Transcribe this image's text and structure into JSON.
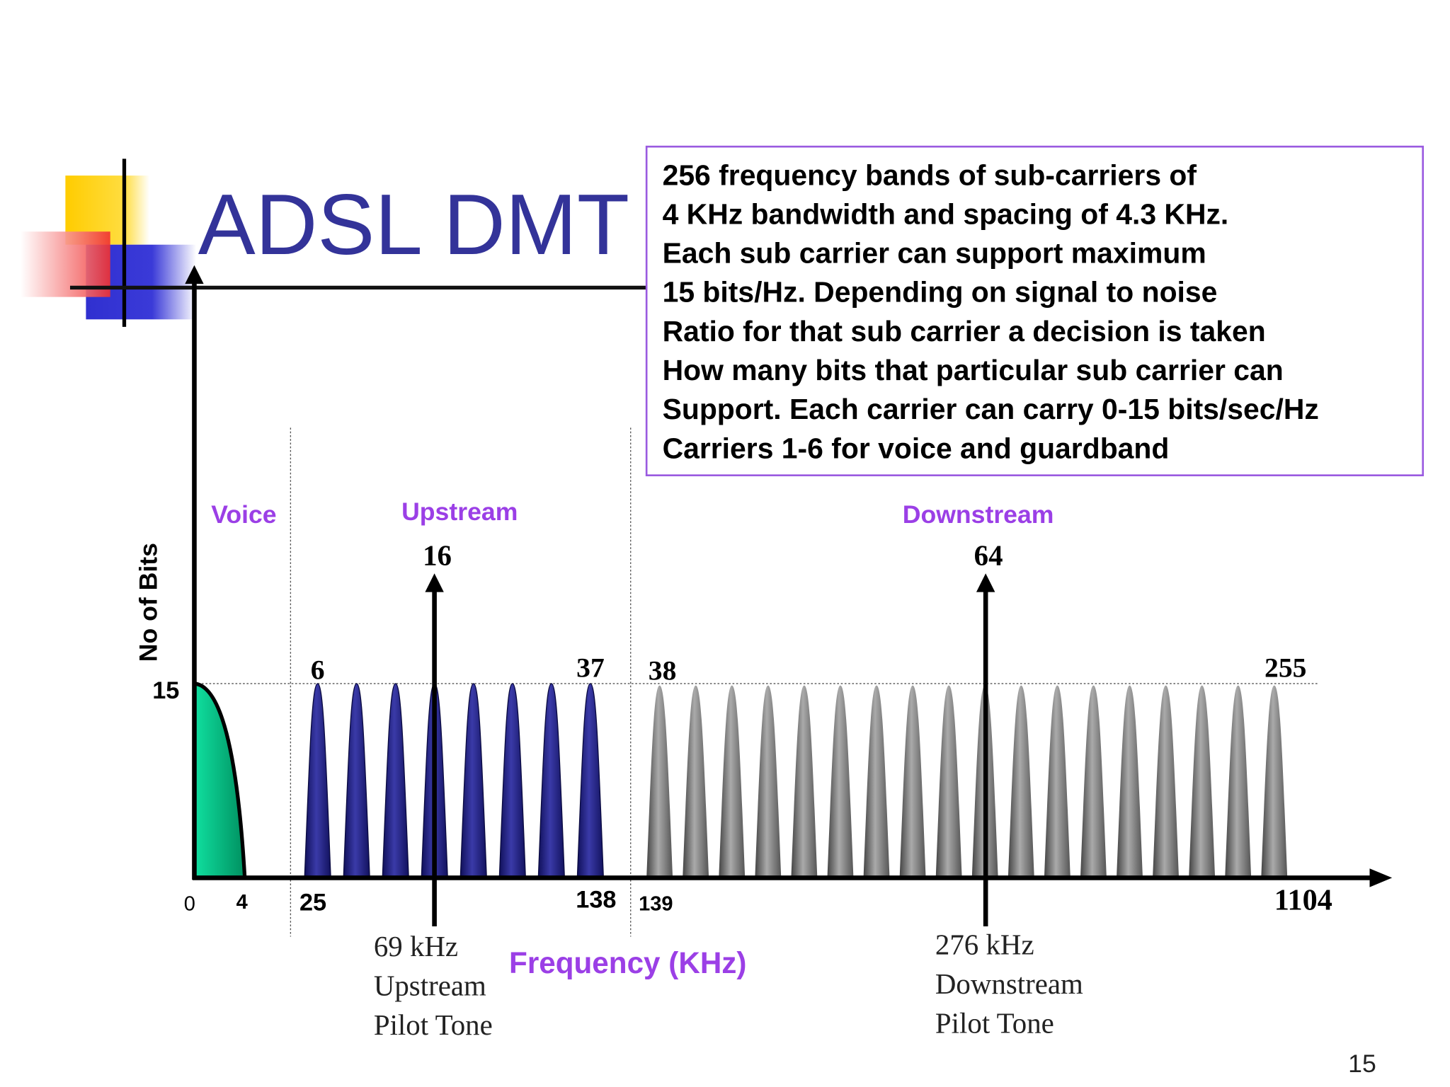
{
  "title": "ADSL DMT",
  "info_box": {
    "lines": [
      "256 frequency bands of sub-carriers of",
      "4 KHz bandwidth and spacing of 4.3 KHz.",
      "Each sub carrier can support maximum",
      "15  bits/Hz. Depending on signal to noise",
      "Ratio for that sub carrier a decision is taken",
      "How many bits that particular sub carrier can",
      "Support. Each carrier can carry 0-15 bits/sec/Hz",
      "Carriers 1-6 for voice and guardband"
    ]
  },
  "axis": {
    "y_label": "No of Bits",
    "y_tick": "15",
    "x_label": "Frequency (KHz)",
    "x_ticks": [
      "0",
      "4",
      "25",
      "138",
      "139",
      "1104"
    ]
  },
  "bands": [
    {
      "label": "Voice"
    },
    {
      "label": "Upstream"
    },
    {
      "label": "Downstream"
    }
  ],
  "carrier_labels": [
    "6",
    "37",
    "38",
    "255"
  ],
  "pilot_tones": [
    {
      "number": "16",
      "caption": [
        "69 kHz",
        "Upstream",
        "Pilot Tone"
      ]
    },
    {
      "number": "64",
      "caption": [
        "276 kHz",
        "Downstream",
        "Pilot Tone"
      ]
    }
  ],
  "page_number": "15"
}
